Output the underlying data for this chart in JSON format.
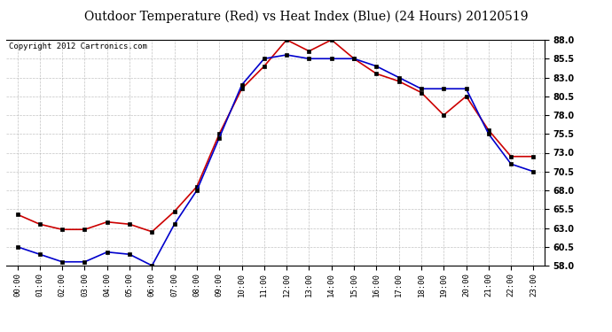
{
  "title": "Outdoor Temperature (Red) vs Heat Index (Blue) (24 Hours) 20120519",
  "copyright": "Copyright 2012 Cartronics.com",
  "hours": [
    "00:00",
    "01:00",
    "02:00",
    "03:00",
    "04:00",
    "05:00",
    "06:00",
    "07:00",
    "08:00",
    "09:00",
    "10:00",
    "11:00",
    "12:00",
    "13:00",
    "14:00",
    "15:00",
    "16:00",
    "17:00",
    "18:00",
    "19:00",
    "20:00",
    "21:00",
    "22:00",
    "23:00"
  ],
  "temp_red": [
    64.8,
    63.5,
    62.8,
    62.8,
    63.8,
    63.5,
    62.5,
    65.2,
    68.5,
    75.5,
    81.5,
    84.5,
    88.0,
    86.5,
    88.0,
    85.5,
    83.5,
    82.5,
    81.0,
    78.0,
    80.5,
    76.0,
    72.5,
    72.5
  ],
  "heat_blue": [
    60.5,
    59.5,
    58.5,
    58.5,
    59.8,
    59.5,
    58.0,
    63.5,
    68.0,
    75.0,
    82.0,
    85.5,
    86.0,
    85.5,
    85.5,
    85.5,
    84.5,
    83.0,
    81.5,
    81.5,
    81.5,
    75.5,
    71.5,
    70.5
  ],
  "ylim": [
    58.0,
    88.0
  ],
  "yticks": [
    58.0,
    60.5,
    63.0,
    65.5,
    68.0,
    70.5,
    73.0,
    75.5,
    78.0,
    80.5,
    83.0,
    85.5,
    88.0
  ],
  "bg_color": "#ffffff",
  "grid_color": "#aaaaaa",
  "red_color": "#cc0000",
  "blue_color": "#0000cc",
  "title_fontsize": 10,
  "copyright_fontsize": 6.5
}
